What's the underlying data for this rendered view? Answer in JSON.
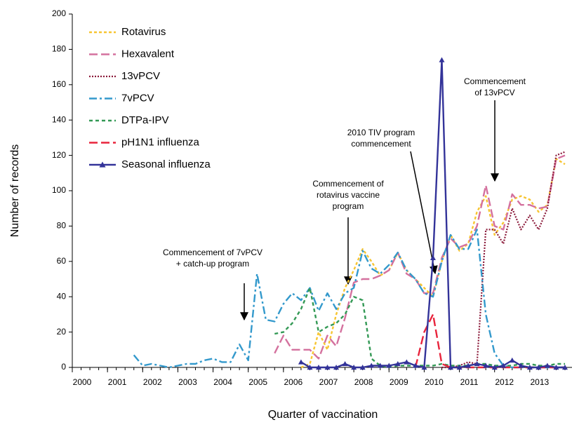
{
  "chart_data": {
    "type": "line",
    "xlabel": "Quarter of vaccination",
    "ylabel": "Number of records",
    "x": [
      2001.5,
      2001.75,
      2002,
      2002.25,
      2002.5,
      2002.75,
      2003,
      2003.25,
      2003.5,
      2003.75,
      2004,
      2004.25,
      2004.5,
      2004.75,
      2005,
      2005.25,
      2005.5,
      2005.75,
      2006,
      2006.25,
      2006.5,
      2006.75,
      2007,
      2007.25,
      2007.5,
      2007.75,
      2008,
      2008.25,
      2008.5,
      2008.75,
      2009,
      2009.25,
      2009.5,
      2009.75,
      2010,
      2010.25,
      2010.5,
      2010.75,
      2011,
      2011.25,
      2011.5,
      2011.75,
      2012,
      2012.25,
      2012.5,
      2012.75,
      2013,
      2013.25,
      2013.5,
      2013.75,
      2014
    ],
    "xlim": [
      2000,
      2014.1
    ],
    "xticks": [
      2000,
      2001,
      2002,
      2003,
      2004,
      2005,
      2006,
      2007,
      2008,
      2009,
      2010,
      2011,
      2012,
      2013
    ],
    "ylim": [
      0,
      200
    ],
    "yticks": [
      0,
      20,
      40,
      60,
      80,
      100,
      120,
      140,
      160,
      180,
      200
    ],
    "legend": "top-left",
    "series": [
      {
        "name": "Rotavirus",
        "color": "#f7c531",
        "line_style": "short-dash",
        "values": [
          null,
          null,
          null,
          null,
          null,
          null,
          null,
          null,
          null,
          null,
          null,
          null,
          null,
          null,
          null,
          null,
          null,
          null,
          null,
          null,
          0,
          2,
          20,
          10,
          30,
          45,
          55,
          67,
          60,
          52,
          55,
          65,
          55,
          50,
          45,
          40,
          60,
          75,
          66,
          70,
          88,
          97,
          75,
          82,
          95,
          97,
          95,
          88,
          92,
          118,
          115
        ]
      },
      {
        "name": "Hexavalent",
        "color": "#d4719e",
        "line_style": "long-dash",
        "values": [
          null,
          null,
          null,
          null,
          null,
          null,
          null,
          null,
          null,
          null,
          null,
          null,
          null,
          null,
          null,
          null,
          null,
          8,
          18,
          10,
          10,
          10,
          5,
          18,
          12,
          28,
          48,
          50,
          50,
          52,
          55,
          65,
          53,
          50,
          42,
          42,
          62,
          73,
          68,
          70,
          80,
          103,
          80,
          78,
          98,
          92,
          92,
          90,
          91,
          118,
          120
        ]
      },
      {
        "name": "13vPCV",
        "color": "#8b1a3a",
        "line_style": "dotted",
        "values": [
          null,
          null,
          null,
          null,
          null,
          null,
          null,
          null,
          null,
          null,
          null,
          null,
          null,
          null,
          null,
          null,
          null,
          null,
          null,
          null,
          null,
          null,
          null,
          null,
          null,
          null,
          null,
          null,
          null,
          null,
          null,
          null,
          null,
          null,
          null,
          null,
          0,
          0,
          1,
          3,
          2,
          78,
          78,
          70,
          90,
          78,
          86,
          78,
          90,
          120,
          122
        ]
      },
      {
        "name": "7vPCV",
        "color": "#3399cc",
        "line_style": "dash-dot",
        "values": [
          null,
          7,
          1,
          2,
          1,
          0,
          1,
          2,
          2,
          4,
          5,
          3,
          3,
          13,
          4,
          53,
          27,
          26,
          36,
          42,
          38,
          45,
          32,
          42,
          33,
          42,
          45,
          66,
          56,
          53,
          58,
          65,
          55,
          50,
          42,
          40,
          60,
          75,
          67,
          67,
          78,
          30,
          8,
          1,
          0,
          0,
          0,
          0,
          0,
          0,
          0
        ]
      },
      {
        "name": "DTPa-IPV",
        "color": "#339955",
        "line_style": "dash",
        "values": [
          null,
          null,
          null,
          null,
          null,
          null,
          null,
          null,
          null,
          null,
          null,
          null,
          null,
          null,
          null,
          null,
          null,
          19,
          20,
          25,
          33,
          45,
          20,
          23,
          25,
          30,
          40,
          38,
          5,
          1,
          0,
          1,
          1,
          1,
          1,
          1,
          2,
          1,
          1,
          1,
          2,
          2,
          1,
          1,
          1,
          2,
          2,
          1,
          1,
          2,
          2
        ]
      },
      {
        "name": "pH1N1 influenza",
        "color": "#e8243c",
        "line_style": "long-dash",
        "values": [
          null,
          null,
          null,
          null,
          null,
          null,
          null,
          null,
          null,
          null,
          null,
          null,
          null,
          null,
          null,
          null,
          null,
          null,
          null,
          null,
          null,
          null,
          null,
          null,
          null,
          null,
          null,
          null,
          null,
          null,
          null,
          null,
          null,
          0,
          20,
          30,
          2,
          0,
          0,
          0,
          0,
          0,
          0,
          0,
          0,
          0,
          0,
          0,
          0,
          0,
          0
        ]
      },
      {
        "name": "Seasonal influenza",
        "color": "#333399",
        "line_style": "solid",
        "marker": "triangle",
        "values": [
          null,
          null,
          null,
          null,
          null,
          null,
          null,
          null,
          null,
          null,
          null,
          null,
          null,
          null,
          null,
          null,
          null,
          null,
          null,
          null,
          3,
          0,
          0,
          0,
          0,
          2,
          0,
          0,
          1,
          1,
          1,
          2,
          3,
          1,
          0,
          62,
          174,
          0,
          0,
          1,
          2,
          1,
          0,
          1,
          4,
          1,
          0,
          0,
          1,
          0,
          0
        ]
      }
    ],
    "annotations": [
      {
        "lines": [
          "Commencement of 7vPCV",
          "+ catch-up program"
        ]
      },
      {
        "lines": [
          "Commencement of",
          "rotavirus vaccine",
          "program"
        ]
      },
      {
        "lines": [
          "2010 TIV program",
          "commencement"
        ]
      },
      {
        "lines": [
          "Commencement",
          "of 13vPCV"
        ]
      }
    ]
  }
}
